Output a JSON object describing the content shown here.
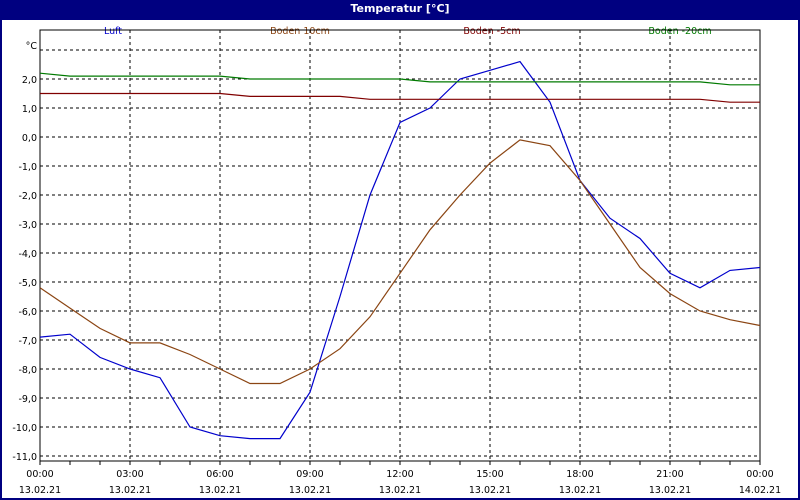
{
  "window": {
    "title": "Temperatur [°C]"
  },
  "legend": [
    {
      "label": "Luft",
      "color": "#0000cc"
    },
    {
      "label": "Boden 10cm",
      "color": "#8b4513"
    },
    {
      "label": "Boden -5cm",
      "color": "#800000"
    },
    {
      "label": "Boden -20cm",
      "color": "#007a00"
    }
  ],
  "axes": {
    "y_unit": "°C",
    "y_ticks": [
      "2,0",
      "1,0",
      "0,0",
      "-1,0",
      "-2,0",
      "-3,0",
      "-4,0",
      "-5,0",
      "-6,0",
      "-7,0",
      "-8,0",
      "-9,0",
      "-10,0",
      "-11,0"
    ],
    "x_ticks": [
      {
        "time": "00:00",
        "date": "13.02.21"
      },
      {
        "time": "03:00",
        "date": "13.02.21"
      },
      {
        "time": "06:00",
        "date": "13.02.21"
      },
      {
        "time": "09:00",
        "date": "13.02.21"
      },
      {
        "time": "12:00",
        "date": "13.02.21"
      },
      {
        "time": "15:00",
        "date": "13.02.21"
      },
      {
        "time": "18:00",
        "date": "13.02.21"
      },
      {
        "time": "21:00",
        "date": "13.02.21"
      },
      {
        "time": "00:00",
        "date": "14.02.21"
      }
    ]
  },
  "chart_data": {
    "type": "line",
    "title": "Temperatur [°C]",
    "xlabel": "",
    "ylabel": "°C",
    "ylim": [
      -11.2,
      3.0
    ],
    "grid": true,
    "legend_position": "top",
    "x": [
      "00:00",
      "01:00",
      "02:00",
      "03:00",
      "04:00",
      "05:00",
      "06:00",
      "07:00",
      "08:00",
      "09:00",
      "10:00",
      "11:00",
      "12:00",
      "13:00",
      "14:00",
      "15:00",
      "16:00",
      "17:00",
      "18:00",
      "19:00",
      "20:00",
      "21:00",
      "22:00",
      "23:00",
      "24:00"
    ],
    "series": [
      {
        "name": "Luft",
        "color": "#0000cc",
        "values": [
          -6.9,
          -6.8,
          -7.6,
          -8.0,
          -8.3,
          -10.0,
          -10.3,
          -10.4,
          -10.4,
          -8.8,
          -5.5,
          -2.0,
          0.5,
          1.0,
          2.0,
          2.3,
          2.6,
          1.2,
          -1.5,
          -2.8,
          -3.5,
          -4.7,
          -5.2,
          -4.6,
          -4.5
        ]
      },
      {
        "name": "Boden 10cm",
        "color": "#8b4513",
        "values": [
          -5.2,
          -5.9,
          -6.6,
          -7.1,
          -7.1,
          -7.5,
          -8.0,
          -8.5,
          -8.5,
          -8.0,
          -7.3,
          -6.2,
          -4.7,
          -3.2,
          -2.0,
          -0.9,
          -0.1,
          -0.3,
          -1.5,
          -3.0,
          -4.5,
          -5.4,
          -6.0,
          -6.3,
          -6.5
        ]
      },
      {
        "name": "Boden -5cm",
        "color": "#800000",
        "values": [
          1.5,
          1.5,
          1.5,
          1.5,
          1.5,
          1.5,
          1.5,
          1.4,
          1.4,
          1.4,
          1.4,
          1.3,
          1.3,
          1.3,
          1.3,
          1.3,
          1.3,
          1.3,
          1.3,
          1.3,
          1.3,
          1.3,
          1.3,
          1.2,
          1.2
        ]
      },
      {
        "name": "Boden -20cm",
        "color": "#007a00",
        "values": [
          2.2,
          2.1,
          2.1,
          2.1,
          2.1,
          2.1,
          2.1,
          2.0,
          2.0,
          2.0,
          2.0,
          2.0,
          2.0,
          1.9,
          1.9,
          1.9,
          1.9,
          1.9,
          1.9,
          1.9,
          1.9,
          1.9,
          1.9,
          1.8,
          1.8
        ]
      }
    ]
  }
}
